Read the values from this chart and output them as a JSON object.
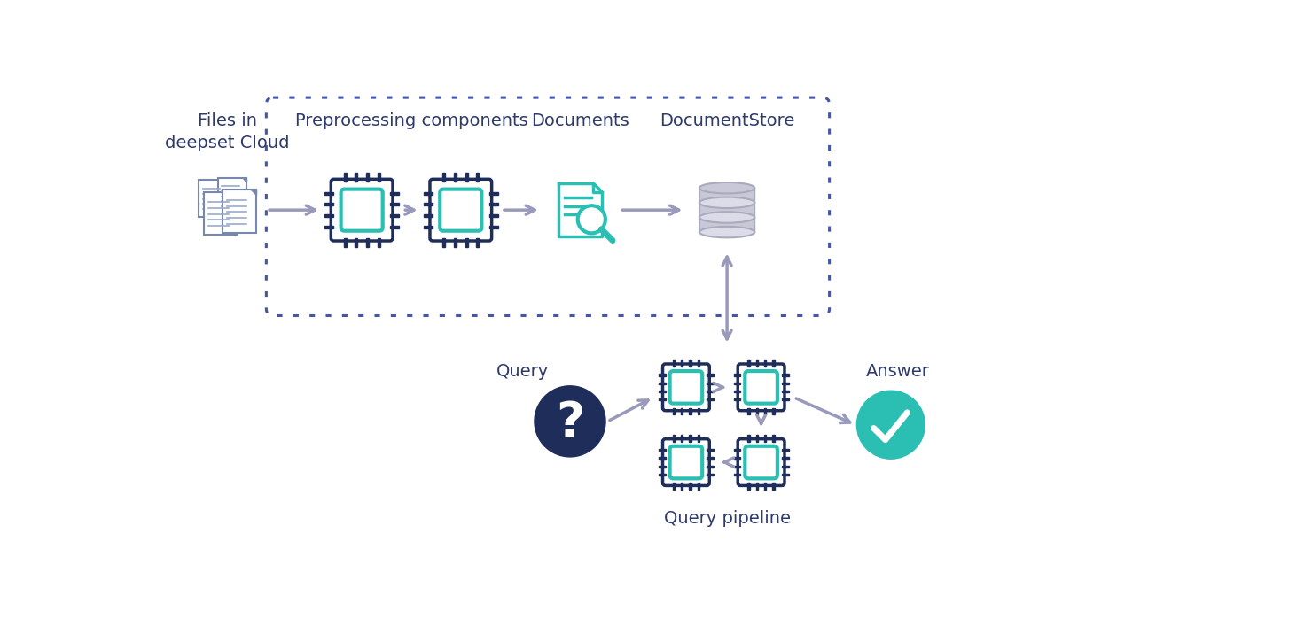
{
  "bg_color": "#ffffff",
  "dark_color": "#1e2d5a",
  "teal_color": "#2bbfb3",
  "gray_color": "#8888aa",
  "arrow_color": "#9999bb",
  "text_color": "#2d3a6b",
  "label_fontsize": 14,
  "files_label": "Files in\ndeepset Cloud",
  "preproc_label": "Preprocessing components",
  "docs_label": "Documents",
  "docstore_label": "DocumentStore",
  "query_label": "Query",
  "answer_label": "Answer",
  "querypipeline_label": "Query pipeline",
  "dot_color": "#4455aa",
  "db_fill": "#c8c8d8",
  "db_top": "#d8d8e8",
  "db_edge": "#aaaacc"
}
